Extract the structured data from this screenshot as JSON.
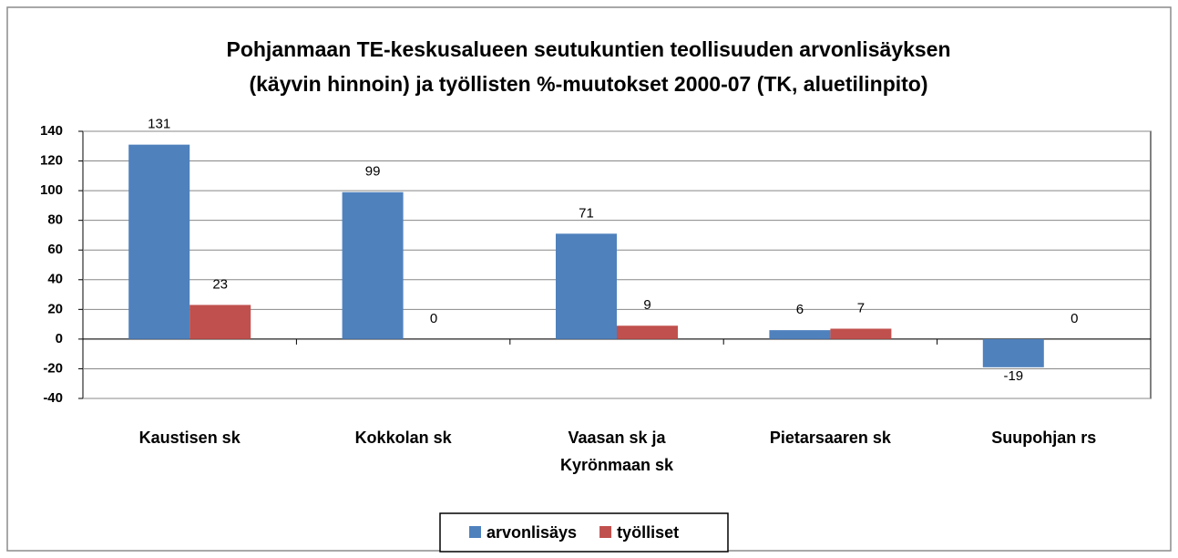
{
  "chart_data": {
    "type": "bar",
    "title": [
      "Pohjanmaan TE-keskusalueen seutukuntien teollisuuden arvonlisäyksen",
      "(käyvin hinnoin) ja työllisten %-muutokset 2000-07 (TK, aluetilinpito)"
    ],
    "categories": [
      "Kaustisen sk",
      "Kokkolan sk",
      "Vaasan sk ja Kyrönmaan sk",
      "Pietarsaaren sk",
      "Suupohjan rs"
    ],
    "series": [
      {
        "name": "arvonlisäys",
        "color": "#4f81bd",
        "values": [
          131,
          99,
          71,
          6,
          -19
        ]
      },
      {
        "name": "työlliset",
        "color": "#c0504d",
        "values": [
          23,
          0,
          9,
          7,
          0
        ]
      }
    ],
    "ylim": [
      -40,
      140
    ],
    "yticks": [
      -40,
      -20,
      0,
      20,
      40,
      60,
      80,
      100,
      120,
      140
    ],
    "grid": true,
    "legend": "bottom"
  }
}
